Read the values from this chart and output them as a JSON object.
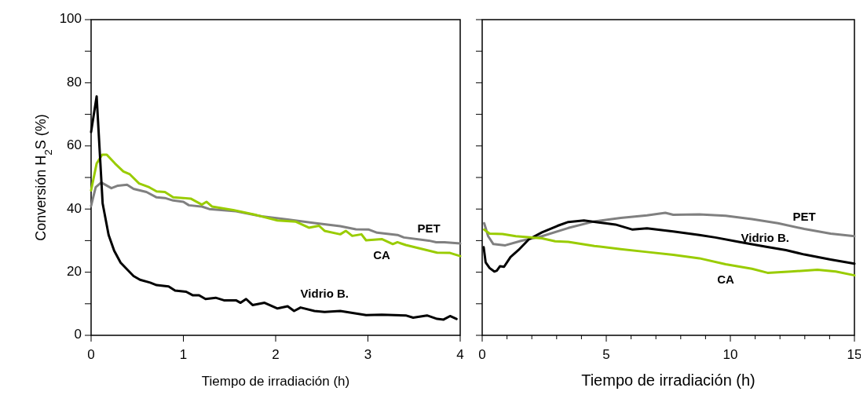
{
  "chart_data": [
    {
      "type": "line",
      "xlabel": "Tiempo de irradiación (h)",
      "ylabel": "Conversión H$_{2}$S (%)",
      "xlim": [
        0,
        4
      ],
      "xticks": [
        0,
        1,
        2,
        3,
        4
      ],
      "ylim": [
        0,
        100
      ],
      "yticks": [
        0,
        {
          "value": 10,
          "label": null
        },
        20,
        {
          "value": 30,
          "label": null
        },
        40,
        {
          "value": 50,
          "label": null
        },
        60,
        {
          "value": 70,
          "label": null
        },
        80,
        {
          "value": 90,
          "label": null
        },
        100
      ],
      "marker": "none",
      "line_style": "solid",
      "series": [
        {
          "name": "PET",
          "color": "#808080",
          "x": [
            0,
            0.05,
            0.11,
            0.22,
            0.29,
            0.39,
            0.46,
            0.6,
            0.71,
            0.8,
            0.89,
            1.0,
            1.06,
            1.2,
            1.28,
            1.57,
            1.85,
            2.13,
            2.42,
            2.7,
            2.87,
            3.01,
            3.1,
            3.32,
            3.39,
            3.66,
            3.74,
            3.83,
            4.0
          ],
          "values": [
            41.0,
            46.9,
            48.4,
            46.6,
            47.4,
            47.7,
            46.4,
            45.4,
            43.7,
            43.5,
            42.7,
            42.3,
            41.2,
            40.8,
            40.0,
            39.3,
            37.7,
            36.7,
            35.6,
            34.6,
            33.6,
            33.5,
            32.5,
            31.8,
            31.0,
            30.0,
            29.5,
            29.5,
            29.1
          ]
        },
        {
          "name": "CA",
          "color": "#99cc00",
          "x": [
            0,
            0.06,
            0.12,
            0.17,
            0.26,
            0.35,
            0.42,
            0.52,
            0.63,
            0.71,
            0.8,
            0.89,
            1.0,
            1.08,
            1.2,
            1.25,
            1.31,
            1.54,
            1.79,
            2.02,
            2.22,
            2.36,
            2.47,
            2.53,
            2.7,
            2.76,
            2.83,
            2.93,
            2.98,
            3.15,
            3.27,
            3.32,
            3.41,
            3.55,
            3.75,
            3.89,
            4.0
          ],
          "values": [
            45.9,
            54.4,
            57.2,
            57.2,
            54.4,
            51.9,
            51.0,
            48.1,
            46.9,
            45.6,
            45.4,
            43.7,
            43.5,
            43.3,
            41.4,
            42.3,
            40.8,
            39.7,
            38.1,
            36.4,
            36.0,
            34.1,
            34.7,
            33.1,
            32.0,
            33.1,
            31.5,
            32.0,
            30.1,
            30.5,
            28.9,
            29.5,
            28.6,
            27.6,
            26.2,
            26.1,
            25.1
          ]
        },
        {
          "name": "Vidrio B.",
          "color": "#000000",
          "x": [
            0,
            0.06,
            0.125,
            0.19,
            0.25,
            0.32,
            0.39,
            0.46,
            0.53,
            0.64,
            0.71,
            0.84,
            0.91,
            1.03,
            1.1,
            1.17,
            1.24,
            1.35,
            1.44,
            1.57,
            1.62,
            1.68,
            1.75,
            1.88,
            2.02,
            2.13,
            2.2,
            2.27,
            2.42,
            2.53,
            2.7,
            2.98,
            3.15,
            3.41,
            3.49,
            3.64,
            3.75,
            3.82,
            3.89,
            3.96
          ],
          "values": [
            64.4,
            75.7,
            41.8,
            31.8,
            26.8,
            23.0,
            20.9,
            18.8,
            17.6,
            16.7,
            15.9,
            15.5,
            14.2,
            13.8,
            12.7,
            12.7,
            11.5,
            11.9,
            11.1,
            11.1,
            10.3,
            11.5,
            9.6,
            10.3,
            8.5,
            9.2,
            7.7,
            8.8,
            7.7,
            7.4,
            7.7,
            6.4,
            6.5,
            6.3,
            5.6,
            6.3,
            5.2,
            5.0,
            6.1,
            5.2
          ]
        }
      ]
    },
    {
      "type": "line",
      "xlabel": "Tiempo de irradiación (h)",
      "xlim": [
        0,
        15
      ],
      "xticks": [
        0,
        {
          "value": 1,
          "label": null
        },
        {
          "value": 2,
          "label": null
        },
        {
          "value": 3,
          "label": null
        },
        {
          "value": 4,
          "label": null
        },
        5,
        {
          "value": 6,
          "label": null
        },
        {
          "value": 7,
          "label": null
        },
        {
          "value": 8,
          "label": null
        },
        {
          "value": 9,
          "label": null
        },
        10,
        {
          "value": 11,
          "label": null
        },
        {
          "value": 12,
          "label": null
        },
        {
          "value": 13,
          "label": null
        },
        {
          "value": 14,
          "label": null
        },
        15
      ],
      "ylim": [
        0,
        100
      ],
      "yticks": [
        0,
        {
          "value": 10,
          "label": null
        },
        20,
        {
          "value": 30,
          "label": null
        },
        40,
        {
          "value": 50,
          "label": null
        },
        60,
        {
          "value": 70,
          "label": null
        },
        80,
        {
          "value": 90,
          "label": null
        },
        100
      ],
      "tick_labels": "x",
      "marker": "none",
      "line_style": "solid",
      "series": [
        {
          "name": "PET",
          "color": "#808080",
          "x": [
            0.08,
            0.24,
            0.45,
            0.93,
            1.56,
            2.41,
            3.47,
            4.52,
            5.58,
            6.64,
            7.38,
            7.7,
            8.75,
            9.81,
            10.87,
            11.92,
            12.98,
            14.04,
            15.0
          ],
          "values": [
            35.5,
            31.4,
            28.9,
            28.5,
            29.9,
            31.4,
            34.0,
            36.1,
            37.2,
            38.0,
            38.8,
            38.2,
            38.3,
            37.9,
            36.8,
            35.5,
            33.7,
            32.2,
            31.4
          ]
        },
        {
          "name": "Vidrio B.",
          "color": "#000000",
          "x": [
            0.06,
            0.14,
            0.3,
            0.49,
            0.59,
            0.72,
            0.88,
            1.14,
            1.46,
            1.88,
            2.41,
            3.04,
            3.47,
            4.1,
            4.95,
            5.37,
            6.06,
            6.64,
            7.7,
            8.75,
            9.39,
            10.34,
            11.4,
            12.24,
            12.98,
            14.04,
            15.0
          ],
          "values": [
            27.9,
            23.1,
            21.3,
            20.2,
            20.5,
            21.9,
            21.7,
            24.8,
            27.0,
            30.4,
            32.6,
            34.7,
            35.9,
            36.4,
            35.5,
            35.1,
            33.5,
            33.9,
            32.9,
            31.8,
            31.0,
            29.6,
            28.1,
            27.0,
            25.6,
            24.0,
            22.7
          ]
        },
        {
          "name": "CA",
          "color": "#99cc00",
          "x": [
            0.08,
            0.3,
            0.82,
            1.35,
            2.41,
            2.94,
            3.47,
            4.52,
            5.58,
            6.64,
            7.7,
            8.75,
            9.81,
            10.87,
            11.5,
            12.45,
            13.51,
            14.25,
            15.0
          ],
          "values": [
            33.5,
            32.2,
            32.1,
            31.4,
            30.7,
            29.8,
            29.6,
            28.3,
            27.3,
            26.4,
            25.5,
            24.4,
            22.5,
            21.1,
            19.8,
            20.2,
            20.8,
            20.2,
            19.0
          ]
        }
      ]
    }
  ]
}
